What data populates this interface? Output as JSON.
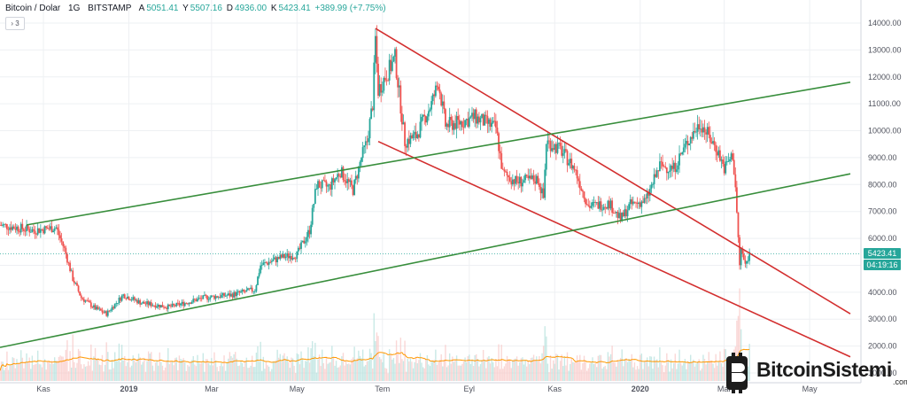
{
  "header": {
    "symbol": "Bitcoin / Dolar",
    "interval": "1G",
    "exchange": "BITSTAMP",
    "open_label": "A",
    "open_value": "5051.41",
    "high_label": "Y",
    "high_value": "5507.16",
    "low_label": "D",
    "low_value": "4936.00",
    "close_label": "K",
    "close_value": "5423.41",
    "change": "+389.99 (+7.75%)"
  },
  "indicator_toggle": "3",
  "last_price_badge": "5423.41",
  "countdown_badge": "04:19:16",
  "logo": {
    "text": "BitcoinSistemi",
    "suffix": ".com"
  },
  "colors": {
    "up": "#26a69a",
    "down": "#ef5350",
    "red_lines": "#d32f2f",
    "green_lines": "#388e3c",
    "volume_ma": "#ff9800",
    "grid": "#eef0f3"
  },
  "chart_data": {
    "type": "candlestick",
    "y_axis_ticks": [
      14000,
      13000,
      12000,
      11000,
      10000,
      9000,
      8000,
      7000,
      6000,
      5000,
      4000,
      3000,
      2000,
      1000
    ],
    "x_axis_ticks": [
      "Kas",
      "2019",
      "Mar",
      "May",
      "Tem",
      "Eyl",
      "Kas",
      "2020",
      "Mar",
      "May"
    ],
    "ylim": [
      700,
      14800
    ],
    "grid": true,
    "price_path": [
      [
        "2018-10-01",
        6500
      ],
      [
        "2018-10-25",
        6300
      ],
      [
        "2018-11-10",
        6400
      ],
      [
        "2018-11-16",
        5600
      ],
      [
        "2018-11-22",
        4500
      ],
      [
        "2018-11-28",
        3800
      ],
      [
        "2018-12-08",
        3400
      ],
      [
        "2018-12-16",
        3200
      ],
      [
        "2018-12-28",
        3900
      ],
      [
        "2019-01-10",
        3600
      ],
      [
        "2019-01-30",
        3450
      ],
      [
        "2019-02-10",
        3600
      ],
      [
        "2019-02-24",
        3800
      ],
      [
        "2019-03-15",
        3900
      ],
      [
        "2019-04-01",
        4100
      ],
      [
        "2019-04-05",
        5000
      ],
      [
        "2019-04-20",
        5300
      ],
      [
        "2019-05-01",
        5400
      ],
      [
        "2019-05-10",
        6300
      ],
      [
        "2019-05-15",
        8000
      ],
      [
        "2019-05-24",
        7900
      ],
      [
        "2019-06-01",
        8500
      ],
      [
        "2019-06-10",
        7800
      ],
      [
        "2019-06-16",
        9000
      ],
      [
        "2019-06-20",
        9600
      ],
      [
        "2019-06-24",
        11000
      ],
      [
        "2019-06-26",
        13400
      ],
      [
        "2019-06-28",
        11500
      ],
      [
        "2019-07-03",
        12000
      ],
      [
        "2019-07-10",
        12700
      ],
      [
        "2019-07-17",
        9600
      ],
      [
        "2019-07-25",
        9800
      ],
      [
        "2019-08-05",
        11000
      ],
      [
        "2019-08-10",
        11800
      ],
      [
        "2019-08-15",
        10200
      ],
      [
        "2019-08-25",
        10300
      ],
      [
        "2019-09-05",
        10500
      ],
      [
        "2019-09-20",
        10100
      ],
      [
        "2019-09-25",
        8400
      ],
      [
        "2019-10-05",
        8100
      ],
      [
        "2019-10-20",
        8200
      ],
      [
        "2019-10-24",
        7500
      ],
      [
        "2019-10-26",
        9600
      ],
      [
        "2019-11-05",
        9300
      ],
      [
        "2019-11-15",
        8600
      ],
      [
        "2019-11-25",
        7200
      ],
      [
        "2019-12-10",
        7300
      ],
      [
        "2019-12-18",
        6700
      ],
      [
        "2019-12-25",
        7250
      ],
      [
        "2020-01-05",
        7400
      ],
      [
        "2020-01-15",
        8700
      ],
      [
        "2020-01-25",
        8600
      ],
      [
        "2020-02-05",
        9700
      ],
      [
        "2020-02-13",
        10300
      ],
      [
        "2020-02-20",
        9700
      ],
      [
        "2020-02-25",
        9300
      ],
      [
        "2020-03-01",
        8600
      ],
      [
        "2020-03-07",
        9100
      ],
      [
        "2020-03-09",
        7900
      ],
      [
        "2020-03-12",
        5000
      ],
      [
        "2020-03-13",
        5600
      ],
      [
        "2020-03-16",
        5000
      ],
      [
        "2020-03-19",
        5423.41
      ]
    ],
    "red_channel_upper": [
      [
        "2019-06-26",
        13800
      ],
      [
        "2020-05-30",
        3200
      ]
    ],
    "red_channel_lower": [
      [
        "2019-06-28",
        9600
      ],
      [
        "2020-05-30",
        1600
      ]
    ],
    "green_channel_upper": [
      [
        "2018-10-20",
        6500
      ],
      [
        "2020-05-30",
        11800
      ]
    ],
    "green_channel_lower": [
      [
        "2018-10-01",
        1950
      ],
      [
        "2020-05-30",
        8400
      ]
    ]
  }
}
